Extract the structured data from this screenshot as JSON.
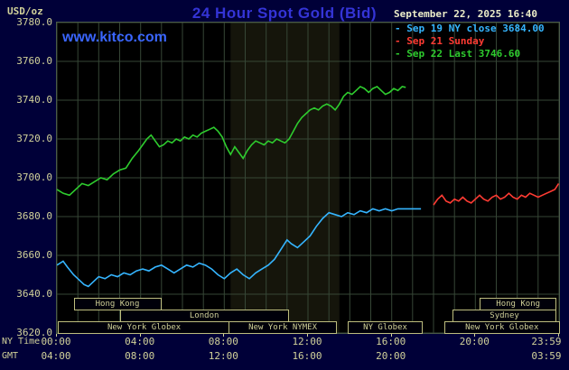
{
  "header": {
    "unit": "USD/oz",
    "title": "24 Hour Spot Gold (Bid)",
    "timestamp": "September 22, 2025 16:40",
    "watermark": "www.kitco.com"
  },
  "colors": {
    "background": "#000038",
    "plot_background": "#000000",
    "grid": "#364636",
    "axis_text": "#d2d29a",
    "title_blue": "#3434d6",
    "series_today_green": "#2ecc2e",
    "series_close_cyan": "#35b5ff",
    "series_sunday_red": "#ff3b33"
  },
  "legend": {
    "items": [
      {
        "text": "- Sep 19 NY close 3684.00",
        "color": "#35b5ff"
      },
      {
        "text": "- Sep 21 Sunday",
        "color": "#ff3b33"
      },
      {
        "text": "- Sep 22 Last 3746.60",
        "color": "#2ecc2e"
      }
    ]
  },
  "axes": {
    "ny_label": "NY Time",
    "gmt_label": "GMT",
    "y_ticks": [
      {
        "label": "3780.0",
        "value": 3780
      },
      {
        "label": "3760.0",
        "value": 3760
      },
      {
        "label": "3740.0",
        "value": 3740
      },
      {
        "label": "3720.0",
        "value": 3720
      },
      {
        "label": "3700.0",
        "value": 3700
      },
      {
        "label": "3680.0",
        "value": 3680
      },
      {
        "label": "3660.0",
        "value": 3660
      },
      {
        "label": "3640.0",
        "value": 3640
      },
      {
        "label": "3620.0",
        "value": 3620
      }
    ],
    "x_ticks_ny": [
      {
        "label": "00:00",
        "hour": 0,
        "align": "center"
      },
      {
        "label": "04:00",
        "hour": 4,
        "align": "center"
      },
      {
        "label": "08:00",
        "hour": 8,
        "align": "center"
      },
      {
        "label": "12:00",
        "hour": 12,
        "align": "center"
      },
      {
        "label": "16:00",
        "hour": 16,
        "align": "center"
      },
      {
        "label": "20:00",
        "hour": 20,
        "align": "center"
      },
      {
        "label": "23:59",
        "hour": 23.98,
        "align": "end"
      }
    ],
    "x_ticks_gmt": [
      {
        "label": "04:00",
        "hour": 0,
        "align": "center"
      },
      {
        "label": "08:00",
        "hour": 4,
        "align": "center"
      },
      {
        "label": "12:00",
        "hour": 8,
        "align": "center"
      },
      {
        "label": "16:00",
        "hour": 12,
        "align": "center"
      },
      {
        "label": "20:00",
        "hour": 16,
        "align": "center"
      },
      {
        "label": "03:59",
        "hour": 23.98,
        "align": "end"
      }
    ]
  },
  "sessions": [
    {
      "row": 0,
      "from": 0.8,
      "to": 4.9,
      "label": "Hong Kong"
    },
    {
      "row": 0,
      "from": 20.2,
      "to": 23.8,
      "label": "Hong Kong"
    },
    {
      "row": 1,
      "from": 3.0,
      "to": 11.0,
      "label": "London"
    },
    {
      "row": 1,
      "from": 18.9,
      "to": 23.8,
      "label": "Sydney"
    },
    {
      "row": 2,
      "from": 0.05,
      "to": 8.2,
      "label": "New York Globex"
    },
    {
      "row": 2,
      "from": 8.2,
      "to": 13.3,
      "label": "New York NYMEX"
    },
    {
      "row": 2,
      "from": 13.9,
      "to": 17.4,
      "label": "NY Globex"
    },
    {
      "row": 2,
      "from": 18.5,
      "to": 23.95,
      "label": "New York Globex"
    }
  ],
  "chart_data": {
    "type": "line",
    "title": "24 Hour Spot Gold (Bid)",
    "xlabel": "NY Time (hours, 00:00-23:59)",
    "ylabel": "USD/oz",
    "xlim": [
      0,
      24
    ],
    "ylim": [
      3620,
      3780
    ],
    "grid": {
      "x_step": 1,
      "y_step": 20,
      "color": "#364636",
      "on": true
    },
    "legend_position": "top-right",
    "bands": [
      {
        "from": 8.3,
        "to": 13.5,
        "color": "#15150b"
      }
    ],
    "series": [
      {
        "name": "Sep 22 Last 3746.60",
        "color": "#2ecc2e",
        "points": [
          [
            0,
            3694
          ],
          [
            0.3,
            3692
          ],
          [
            0.6,
            3691
          ],
          [
            0.9,
            3694
          ],
          [
            1.2,
            3697
          ],
          [
            1.5,
            3696
          ],
          [
            1.8,
            3698
          ],
          [
            2.1,
            3700
          ],
          [
            2.4,
            3699
          ],
          [
            2.7,
            3702
          ],
          [
            3.0,
            3704
          ],
          [
            3.3,
            3705
          ],
          [
            3.6,
            3710
          ],
          [
            3.9,
            3714
          ],
          [
            4.1,
            3717
          ],
          [
            4.3,
            3720
          ],
          [
            4.5,
            3722
          ],
          [
            4.7,
            3719
          ],
          [
            4.9,
            3716
          ],
          [
            5.1,
            3717
          ],
          [
            5.3,
            3719
          ],
          [
            5.5,
            3718
          ],
          [
            5.7,
            3720
          ],
          [
            5.9,
            3719
          ],
          [
            6.1,
            3721
          ],
          [
            6.3,
            3720
          ],
          [
            6.5,
            3722
          ],
          [
            6.7,
            3721
          ],
          [
            6.9,
            3723
          ],
          [
            7.1,
            3724
          ],
          [
            7.3,
            3725
          ],
          [
            7.5,
            3726
          ],
          [
            7.7,
            3724
          ],
          [
            7.9,
            3721
          ],
          [
            8.1,
            3716
          ],
          [
            8.3,
            3712
          ],
          [
            8.5,
            3716
          ],
          [
            8.7,
            3713
          ],
          [
            8.9,
            3710
          ],
          [
            9.1,
            3714
          ],
          [
            9.3,
            3717
          ],
          [
            9.5,
            3719
          ],
          [
            9.7,
            3718
          ],
          [
            9.9,
            3717
          ],
          [
            10.1,
            3719
          ],
          [
            10.3,
            3718
          ],
          [
            10.5,
            3720
          ],
          [
            10.7,
            3719
          ],
          [
            10.9,
            3718
          ],
          [
            11.1,
            3720
          ],
          [
            11.3,
            3724
          ],
          [
            11.5,
            3728
          ],
          [
            11.7,
            3731
          ],
          [
            11.9,
            3733
          ],
          [
            12.1,
            3735
          ],
          [
            12.3,
            3736
          ],
          [
            12.5,
            3735
          ],
          [
            12.7,
            3737
          ],
          [
            12.9,
            3738
          ],
          [
            13.1,
            3737
          ],
          [
            13.3,
            3735
          ],
          [
            13.5,
            3738
          ],
          [
            13.7,
            3742
          ],
          [
            13.9,
            3744
          ],
          [
            14.1,
            3743
          ],
          [
            14.3,
            3745
          ],
          [
            14.5,
            3747
          ],
          [
            14.7,
            3746
          ],
          [
            14.9,
            3744
          ],
          [
            15.1,
            3746
          ],
          [
            15.3,
            3747
          ],
          [
            15.5,
            3745
          ],
          [
            15.7,
            3743
          ],
          [
            15.9,
            3744
          ],
          [
            16.1,
            3746
          ],
          [
            16.3,
            3745
          ],
          [
            16.5,
            3747
          ],
          [
            16.67,
            3746.6
          ]
        ]
      },
      {
        "name": "Sep 19 NY close 3684.00",
        "color": "#35b5ff",
        "points": [
          [
            0,
            3655
          ],
          [
            0.3,
            3657
          ],
          [
            0.5,
            3654
          ],
          [
            0.8,
            3650
          ],
          [
            1.0,
            3648
          ],
          [
            1.3,
            3645
          ],
          [
            1.5,
            3644
          ],
          [
            1.8,
            3647
          ],
          [
            2.0,
            3649
          ],
          [
            2.3,
            3648
          ],
          [
            2.6,
            3650
          ],
          [
            2.9,
            3649
          ],
          [
            3.2,
            3651
          ],
          [
            3.5,
            3650
          ],
          [
            3.8,
            3652
          ],
          [
            4.1,
            3653
          ],
          [
            4.4,
            3652
          ],
          [
            4.7,
            3654
          ],
          [
            5.0,
            3655
          ],
          [
            5.3,
            3653
          ],
          [
            5.6,
            3651
          ],
          [
            5.9,
            3653
          ],
          [
            6.2,
            3655
          ],
          [
            6.5,
            3654
          ],
          [
            6.8,
            3656
          ],
          [
            7.1,
            3655
          ],
          [
            7.4,
            3653
          ],
          [
            7.7,
            3650
          ],
          [
            8.0,
            3648
          ],
          [
            8.3,
            3651
          ],
          [
            8.6,
            3653
          ],
          [
            8.9,
            3650
          ],
          [
            9.2,
            3648
          ],
          [
            9.5,
            3651
          ],
          [
            9.8,
            3653
          ],
          [
            10.1,
            3655
          ],
          [
            10.4,
            3658
          ],
          [
            10.7,
            3663
          ],
          [
            11.0,
            3668
          ],
          [
            11.2,
            3666
          ],
          [
            11.5,
            3664
          ],
          [
            11.8,
            3667
          ],
          [
            12.1,
            3670
          ],
          [
            12.4,
            3675
          ],
          [
            12.7,
            3679
          ],
          [
            13.0,
            3682
          ],
          [
            13.3,
            3681
          ],
          [
            13.6,
            3680
          ],
          [
            13.9,
            3682
          ],
          [
            14.2,
            3681
          ],
          [
            14.5,
            3683
          ],
          [
            14.8,
            3682
          ],
          [
            15.1,
            3684
          ],
          [
            15.4,
            3683
          ],
          [
            15.7,
            3684
          ],
          [
            16.0,
            3683
          ],
          [
            16.3,
            3684
          ],
          [
            16.8,
            3684
          ],
          [
            17.4,
            3684
          ]
        ]
      },
      {
        "name": "Sep 21 Sunday",
        "color": "#ff3b33",
        "points": [
          [
            18.0,
            3686
          ],
          [
            18.2,
            3689
          ],
          [
            18.4,
            3691
          ],
          [
            18.6,
            3688
          ],
          [
            18.8,
            3687
          ],
          [
            19.0,
            3689
          ],
          [
            19.2,
            3688
          ],
          [
            19.4,
            3690
          ],
          [
            19.6,
            3688
          ],
          [
            19.8,
            3687
          ],
          [
            20.0,
            3689
          ],
          [
            20.2,
            3691
          ],
          [
            20.4,
            3689
          ],
          [
            20.6,
            3688
          ],
          [
            20.8,
            3690
          ],
          [
            21.0,
            3691
          ],
          [
            21.2,
            3689
          ],
          [
            21.4,
            3690
          ],
          [
            21.6,
            3692
          ],
          [
            21.8,
            3690
          ],
          [
            22.0,
            3689
          ],
          [
            22.2,
            3691
          ],
          [
            22.4,
            3690
          ],
          [
            22.6,
            3692
          ],
          [
            22.8,
            3691
          ],
          [
            23.0,
            3690
          ],
          [
            23.2,
            3691
          ],
          [
            23.4,
            3692
          ],
          [
            23.6,
            3693
          ],
          [
            23.8,
            3694
          ],
          [
            23.98,
            3697
          ]
        ]
      }
    ]
  }
}
